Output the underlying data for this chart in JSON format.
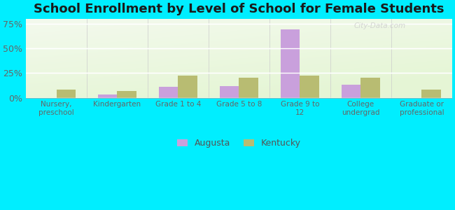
{
  "title": "School Enrollment by Level of School for Female Students",
  "categories": [
    "Nursery,\npreschool",
    "Kindergarten",
    "Grade 1 to 4",
    "Grade 5 to 8",
    "Grade 9 to\n12",
    "College\nundergrad",
    "Graduate or\nprofessional"
  ],
  "augusta_values": [
    0.0,
    3.5,
    11.0,
    11.5,
    69.0,
    13.0,
    0.0
  ],
  "kentucky_values": [
    8.0,
    7.0,
    22.0,
    20.0,
    22.0,
    20.0,
    8.5
  ],
  "augusta_color": "#c9a0dc",
  "kentucky_color": "#b8bc72",
  "ylim": [
    0,
    80
  ],
  "yticks": [
    0,
    25,
    50,
    75
  ],
  "ytick_labels": [
    "0%",
    "25%",
    "50%",
    "75%"
  ],
  "background_color_fig": "#00eeff",
  "title_fontsize": 13,
  "legend_labels": [
    "Augusta",
    "Kentucky"
  ],
  "bar_width": 0.32
}
